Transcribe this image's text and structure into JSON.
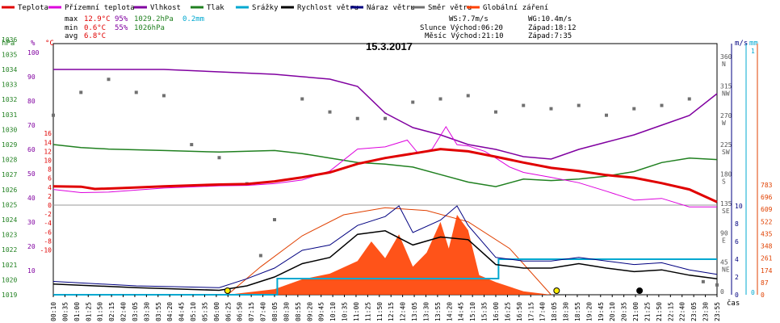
{
  "chart_data": {
    "type": "line",
    "title": "15.3.2017",
    "legend": [
      {
        "key": "teplota",
        "label": "Teplota",
        "color": "#e00000"
      },
      {
        "key": "prizemni",
        "label": "Přízemní teplota",
        "color": "#dd00dd"
      },
      {
        "key": "vlhkost",
        "label": "Vlhkost",
        "color": "#8000a0"
      },
      {
        "key": "tlak",
        "label": "Tlak",
        "color": "#208020"
      },
      {
        "key": "srazky",
        "label": "Srážky",
        "color": "#00a8d0"
      },
      {
        "key": "rychlost",
        "label": "Rychlost větru",
        "color": "#000000"
      },
      {
        "key": "naraz",
        "label": "Náraz větru",
        "color": "#000080"
      },
      {
        "key": "smer",
        "label": "Směr větru",
        "color": "#707070"
      },
      {
        "key": "zareni",
        "label": "Globální záření",
        "color": "#ff4000"
      }
    ],
    "stats": {
      "max": {
        "label": "max",
        "temp": "12.9°C",
        "hum": "95%",
        "press": "1029.2hPa",
        "rain": "0.2mm"
      },
      "min": {
        "label": "min",
        "temp": "0.6°C",
        "hum": "55%",
        "press": "1026hPa"
      },
      "avg": {
        "label": "avg",
        "temp": "6.8°C"
      }
    },
    "wind_info": {
      "ws": "WS:7.7m/s",
      "wg": "WG:10.4m/s"
    },
    "sun_info": {
      "sunrise": "Slunce Východ:06:20",
      "sunset": "Západ:18:12"
    },
    "moon_info": {
      "moonrise": "Měsíc Východ:21:10",
      "moonset": "Západ:7:35"
    },
    "axes": {
      "pressure": {
        "unit": "hPa",
        "ticks": [
          "1036",
          "1035",
          "1034",
          "1033",
          "1032",
          "1031",
          "1030",
          "1029",
          "1028",
          "1027",
          "1026",
          "1025",
          "1024",
          "1023",
          "1022",
          "1021",
          "1020",
          "1019"
        ]
      },
      "humidity": {
        "unit": "%",
        "ticks": [
          "100",
          "90",
          "80",
          "70",
          "60",
          "50",
          "40",
          "30",
          "20",
          "10"
        ]
      },
      "temperature": {
        "unit": "°C",
        "ticks": [
          "16",
          "14",
          "12",
          "10",
          "8",
          "6",
          "4",
          "2",
          "0",
          "-2",
          "-4",
          "-6",
          "-8",
          "-10"
        ]
      },
      "direction": {
        "ticks": [
          [
            "360",
            "N"
          ],
          [
            "315",
            "NW"
          ],
          [
            "270",
            "W"
          ],
          [
            "225",
            "SW"
          ],
          [
            "180",
            "S"
          ],
          [
            "135",
            "SE"
          ],
          [
            "90",
            "E"
          ],
          [
            "45",
            "NE"
          ],
          [
            "0",
            ""
          ]
        ]
      },
      "wind_speed": {
        "unit": "m/s",
        "ticks": [
          "10",
          "8",
          "6",
          "4",
          "2",
          "0"
        ]
      },
      "rain": {
        "unit": "mm",
        "ticks": [
          "1",
          "0"
        ]
      },
      "radiation": {
        "ticks": [
          "783",
          "696",
          "609",
          "522",
          "435",
          "348",
          "261",
          "174",
          "87",
          "0"
        ]
      },
      "x_unit": "čas",
      "x_ticks": [
        "00:10",
        "00:35",
        "01:00",
        "01:25",
        "01:50",
        "02:15",
        "02:40",
        "03:05",
        "03:30",
        "03:55",
        "04:20",
        "04:45",
        "05:10",
        "05:35",
        "06:00",
        "06:25",
        "06:50",
        "07:15",
        "07:40",
        "08:05",
        "08:30",
        "08:55",
        "09:20",
        "09:45",
        "10:10",
        "10:35",
        "11:00",
        "11:25",
        "11:50",
        "12:15",
        "12:40",
        "13:05",
        "13:30",
        "13:55",
        "14:20",
        "14:45",
        "15:10",
        "15:35",
        "16:00",
        "16:25",
        "16:50",
        "17:15",
        "17:40",
        "18:05",
        "18:30",
        "18:55",
        "19:20",
        "19:45",
        "20:10",
        "20:35",
        "21:00",
        "21:25",
        "21:50",
        "22:15",
        "22:40",
        "23:05",
        "23:30",
        "23:55"
      ]
    },
    "series": {
      "teplota": [
        [
          0,
          4.2
        ],
        [
          1,
          4.1
        ],
        [
          1.5,
          3.6
        ],
        [
          2.5,
          3.8
        ],
        [
          4,
          4.2
        ],
        [
          6,
          4.6
        ],
        [
          7,
          4.7
        ],
        [
          8,
          5.3
        ],
        [
          9,
          6.2
        ],
        [
          10,
          7.3
        ],
        [
          11,
          9.2
        ],
        [
          12,
          10.5
        ],
        [
          13,
          11.5
        ],
        [
          14,
          12.5
        ],
        [
          15,
          12.0
        ],
        [
          16,
          10.8
        ],
        [
          17,
          9.5
        ],
        [
          18,
          8.3
        ],
        [
          19,
          7.6
        ],
        [
          20,
          6.7
        ],
        [
          21,
          6.1
        ],
        [
          22,
          4.9
        ],
        [
          23,
          3.5
        ],
        [
          24,
          0.7
        ]
      ],
      "prizemni": [
        [
          0,
          3.5
        ],
        [
          1,
          2.8
        ],
        [
          2,
          2.9
        ],
        [
          4,
          3.8
        ],
        [
          6,
          4.3
        ],
        [
          7,
          4.4
        ],
        [
          8,
          4.8
        ],
        [
          9,
          5.6
        ],
        [
          10,
          7.6
        ],
        [
          11,
          12.5
        ],
        [
          12,
          13.0
        ],
        [
          12.8,
          14.5
        ],
        [
          13.2,
          11.5
        ],
        [
          13.7,
          12.5
        ],
        [
          14.2,
          17.5
        ],
        [
          14.6,
          13.5
        ],
        [
          15,
          13.2
        ],
        [
          15.6,
          12.0
        ],
        [
          16,
          10.5
        ],
        [
          16.5,
          8.5
        ],
        [
          17,
          7.3
        ],
        [
          18,
          6.2
        ],
        [
          19,
          5.0
        ],
        [
          20,
          3.1
        ],
        [
          21,
          1.1
        ],
        [
          22,
          1.5
        ],
        [
          23,
          -0.4
        ],
        [
          24,
          -0.4
        ]
      ],
      "vlhkost": [
        [
          0,
          93
        ],
        [
          2,
          93
        ],
        [
          4,
          93
        ],
        [
          6,
          92
        ],
        [
          8,
          91
        ],
        [
          9,
          90
        ],
        [
          10,
          89
        ],
        [
          11,
          86
        ],
        [
          12,
          75
        ],
        [
          13,
          69
        ],
        [
          14,
          66
        ],
        [
          15,
          62
        ],
        [
          16,
          60
        ],
        [
          17,
          57
        ],
        [
          18,
          56
        ],
        [
          19,
          60
        ],
        [
          20,
          63
        ],
        [
          21,
          66
        ],
        [
          22,
          70
        ],
        [
          23,
          74
        ],
        [
          24,
          83
        ]
      ],
      "tlak": [
        [
          0,
          1029
        ],
        [
          1,
          1028.8
        ],
        [
          2,
          1028.7
        ],
        [
          4,
          1028.6
        ],
        [
          6,
          1028.5
        ],
        [
          8,
          1028.6
        ],
        [
          9,
          1028.4
        ],
        [
          10,
          1028.1
        ],
        [
          11,
          1027.8
        ],
        [
          12,
          1027.7
        ],
        [
          13,
          1027.5
        ],
        [
          14,
          1027.0
        ],
        [
          15,
          1026.5
        ],
        [
          16,
          1026.2
        ],
        [
          17,
          1026.7
        ],
        [
          18,
          1026.6
        ],
        [
          19,
          1026.7
        ],
        [
          20,
          1026.9
        ],
        [
          21,
          1027.2
        ],
        [
          22,
          1027.8
        ],
        [
          23,
          1028.1
        ],
        [
          24,
          1028.0
        ]
      ],
      "rychlost": [
        [
          0,
          1.2
        ],
        [
          3,
          0.8
        ],
        [
          6,
          0.5
        ],
        [
          7,
          1.0
        ],
        [
          8,
          2.0
        ],
        [
          9,
          3.5
        ],
        [
          10,
          4.2
        ],
        [
          11,
          6.8
        ],
        [
          12,
          7.2
        ],
        [
          13,
          5.6
        ],
        [
          14,
          6.5
        ],
        [
          15,
          6.2
        ],
        [
          16,
          3.4
        ],
        [
          17,
          3.0
        ],
        [
          18,
          3.0
        ],
        [
          19,
          3.5
        ],
        [
          20,
          3.0
        ],
        [
          21,
          2.6
        ],
        [
          22,
          2.8
        ],
        [
          23,
          2.2
        ],
        [
          24,
          1.8
        ]
      ],
      "naraz": [
        [
          0,
          1.5
        ],
        [
          3,
          1.0
        ],
        [
          6,
          0.8
        ],
        [
          7,
          1.8
        ],
        [
          8,
          3.0
        ],
        [
          9,
          5.0
        ],
        [
          10,
          5.6
        ],
        [
          11,
          7.8
        ],
        [
          12,
          8.8
        ],
        [
          12.5,
          10.0
        ],
        [
          13,
          7.0
        ],
        [
          14,
          8.4
        ],
        [
          14.6,
          10.0
        ],
        [
          15,
          7.8
        ],
        [
          16,
          4.2
        ],
        [
          17,
          3.8
        ],
        [
          18,
          3.8
        ],
        [
          19,
          4.2
        ],
        [
          20,
          3.8
        ],
        [
          21,
          3.4
        ],
        [
          22,
          3.6
        ],
        [
          23,
          2.8
        ],
        [
          24,
          2.3
        ]
      ],
      "srazky_steps": [
        [
          0,
          0
        ],
        [
          8.1,
          0
        ],
        [
          8.1,
          0.25
        ],
        [
          16.1,
          0.25
        ],
        [
          16.1,
          0.55
        ],
        [
          24,
          0.55
        ]
      ],
      "zareni": [
        [
          6.3,
          0
        ],
        [
          8,
          40
        ],
        [
          9,
          110
        ],
        [
          10,
          150
        ],
        [
          11,
          240
        ],
        [
          11.5,
          380
        ],
        [
          12,
          260
        ],
        [
          12.5,
          430
        ],
        [
          13,
          200
        ],
        [
          13.5,
          300
        ],
        [
          14,
          520
        ],
        [
          14.3,
          330
        ],
        [
          14.6,
          570
        ],
        [
          15,
          460
        ],
        [
          15.4,
          140
        ],
        [
          16,
          90
        ],
        [
          17,
          25
        ],
        [
          18,
          0
        ]
      ],
      "zareni_envelope": [
        [
          6.3,
          0
        ],
        [
          7.5,
          200
        ],
        [
          9,
          420
        ],
        [
          10.5,
          570
        ],
        [
          12,
          620
        ],
        [
          13.5,
          600
        ],
        [
          15,
          520
        ],
        [
          16.5,
          330
        ],
        [
          18,
          0
        ]
      ],
      "smer": [
        [
          0,
          275
        ],
        [
          1,
          310
        ],
        [
          2,
          330
        ],
        [
          3,
          310
        ],
        [
          4,
          305
        ],
        [
          5,
          230
        ],
        [
          6,
          210
        ],
        [
          7,
          170
        ],
        [
          7.5,
          60
        ],
        [
          8,
          115
        ],
        [
          9,
          300
        ],
        [
          10,
          280
        ],
        [
          11,
          270
        ],
        [
          12,
          270
        ],
        [
          13,
          295
        ],
        [
          14,
          300
        ],
        [
          15,
          305
        ],
        [
          16,
          280
        ],
        [
          17,
          290
        ],
        [
          18,
          285
        ],
        [
          19,
          290
        ],
        [
          20,
          275
        ],
        [
          21,
          285
        ],
        [
          22,
          290
        ],
        [
          23,
          300
        ],
        [
          23.5,
          20
        ],
        [
          24,
          15
        ]
      ]
    }
  }
}
